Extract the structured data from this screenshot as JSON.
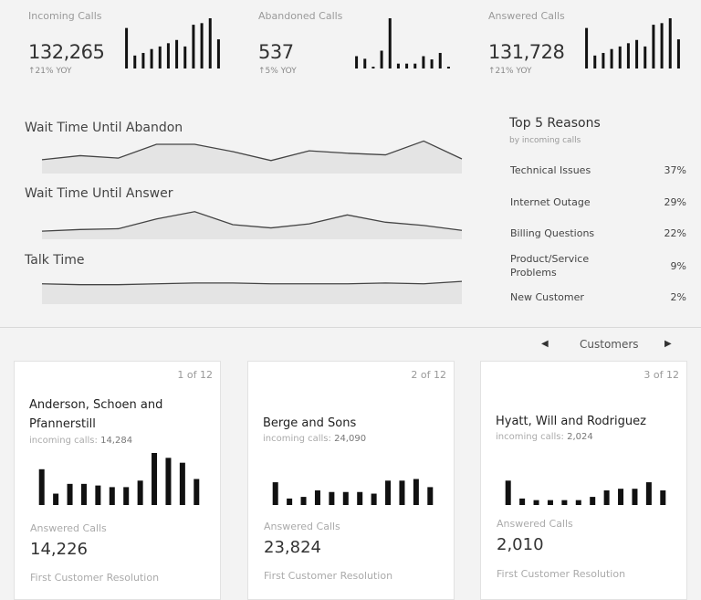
{
  "kpis": [
    {
      "label": "Incoming Calls",
      "value": "132,265",
      "yoy": "↑21% YOY",
      "bars": [
        125,
        40,
        48,
        60,
        68,
        78,
        88,
        68,
        135,
        140,
        155,
        90
      ]
    },
    {
      "label": "Abandoned Calls",
      "value": "537",
      "yoy": "↑5% YOY",
      "bars": [
        38,
        30,
        5,
        55,
        155,
        15,
        15,
        15,
        38,
        28,
        48,
        3
      ]
    },
    {
      "label": "Answered Calls",
      "value": "131,728",
      "yoy": "↑21% YOY",
      "bars": [
        125,
        40,
        48,
        60,
        68,
        78,
        88,
        68,
        135,
        140,
        155,
        90
      ]
    }
  ],
  "trends": [
    {
      "title": "Wait Time Until Abandon",
      "values": [
        17,
        22,
        19,
        36,
        36,
        27,
        16,
        28,
        25,
        23,
        40,
        18
      ]
    },
    {
      "title": "Wait Time Until Answer",
      "values": [
        10,
        12,
        13,
        25,
        34,
        18,
        14,
        19,
        30,
        21,
        17,
        11
      ]
    },
    {
      "title": "Talk Time",
      "values": [
        25,
        24,
        24,
        25,
        26,
        26,
        25,
        25,
        25,
        26,
        25,
        28
      ]
    }
  ],
  "reasons": {
    "title": "Top 5 Reasons",
    "subtitle": "by incoming calls",
    "items": [
      {
        "label": "Technical Issues",
        "pct": "37%"
      },
      {
        "label": "Internet Outage",
        "pct": "29%"
      },
      {
        "label": "Billing Questions",
        "pct": "22%"
      },
      {
        "label": "Product/Service Problems",
        "pct": "9%"
      },
      {
        "label": "New Customer",
        "pct": "2%"
      }
    ]
  },
  "nav": {
    "label": "Customers",
    "prev": "◀",
    "next": "▶"
  },
  "cards": [
    {
      "count": "1 of 12",
      "name": "Anderson, Schoen and Pfannerstill",
      "inc_label": "incoming calls:",
      "inc": "14,284",
      "answered_label": "Answered Calls",
      "answered": "14,226",
      "fcr_label": "First Customer Resolution",
      "bars": [
        110,
        35,
        65,
        65,
        60,
        55,
        55,
        75,
        160,
        145,
        130,
        80
      ]
    },
    {
      "count": "2 of 12",
      "name": "Berge and Sons",
      "inc_label": "incoming calls:",
      "inc": "24,090",
      "answered_label": "Answered Calls",
      "answered": "23,824",
      "fcr_label": "First Customer Resolution",
      "bars": [
        70,
        20,
        25,
        45,
        40,
        40,
        40,
        35,
        75,
        75,
        80,
        55
      ]
    },
    {
      "count": "3 of 12",
      "name": "Hyatt, Will and Rodriguez",
      "inc_label": "incoming calls:",
      "inc": "2,024",
      "answered_label": "Answered Calls",
      "answered": "2,010",
      "fcr_label": "First Customer Resolution",
      "bars": [
        75,
        20,
        15,
        15,
        15,
        15,
        25,
        45,
        50,
        50,
        70,
        45
      ]
    }
  ]
}
